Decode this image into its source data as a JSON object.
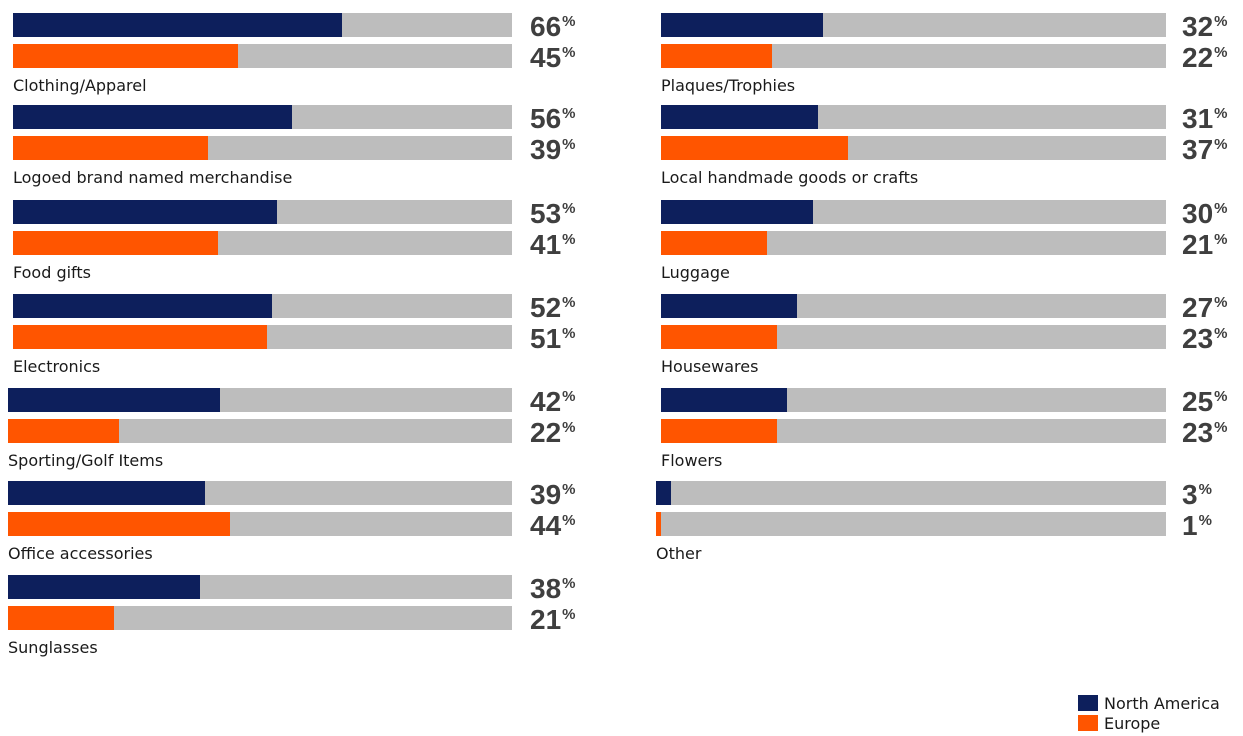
{
  "chart_data": {
    "type": "bar",
    "orientation": "horizontal",
    "value_suffix": "%",
    "xlim": [
      0,
      100
    ],
    "legend_position": "bottom-right",
    "colors": {
      "north_america": "#0d1f5c",
      "europe": "#ff5500",
      "track": "#bdbdbd"
    },
    "series": [
      {
        "name": "North America",
        "values": [
          66,
          56,
          53,
          52,
          42,
          39,
          38,
          32,
          31,
          30,
          27,
          25,
          3
        ]
      },
      {
        "name": "Europe",
        "values": [
          45,
          39,
          41,
          51,
          22,
          44,
          21,
          22,
          37,
          21,
          23,
          23,
          1
        ]
      }
    ],
    "categories": [
      "Clothing/Apparel",
      "Logoed brand named merchandise",
      "Food gifts",
      "Electronics",
      "Sporting/Golf Items",
      "Office accessories",
      "Sunglasses",
      "Plaques/Trophies",
      "Local handmade goods or crafts",
      "Luggage",
      "Housewares",
      "Flowers",
      "Other"
    ]
  }
}
